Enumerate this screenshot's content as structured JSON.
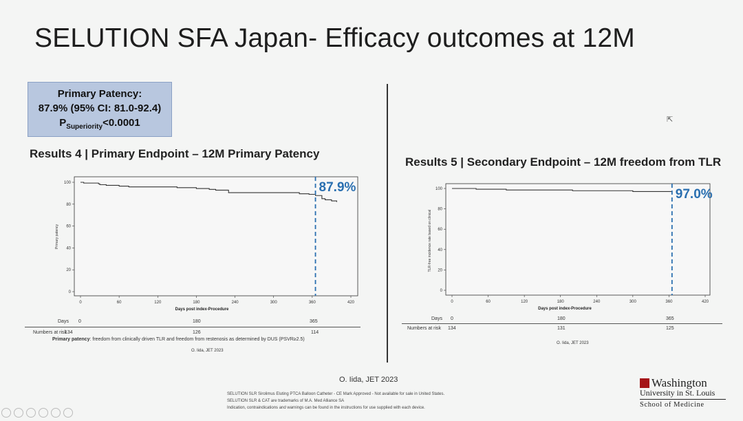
{
  "slide": {
    "title": "SELUTION SFA Japan- Efficacy outcomes at 12M",
    "stat_box": {
      "line1": "Primary Patency:",
      "line2": "87.9% (95% CI: 81.0-92.4)",
      "p_main": "P",
      "p_sub": "Superiority",
      "p_value": "<0.0001"
    },
    "citation": "O. Iida, JET 2023",
    "disclaimer_lines": [
      "SELUTION SLR Sirolimus Eluting PTCA Balloon Catheter - CE Mark Approved - Not available for sale in United States.",
      "SELUTION SLR & CAT are trademarks of M.A. Med Alliance SA",
      "Indication, contraindications and warnings can be found in the instructions for use supplied with each device."
    ],
    "logo": {
      "line1": "Washington",
      "line2": "University in St. Louis",
      "line3": "School of Medicine"
    }
  },
  "left": {
    "title": "Results 4 | Primary Endpoint – 12M Primary Patency",
    "risk_days_label": "Days",
    "risk_numbers_label": "Numbers at risk",
    "risk_days": [
      "0",
      "180",
      "365"
    ],
    "risk_numbers": [
      "134",
      "126",
      "114"
    ],
    "footnote_bold": "Primary patency",
    "footnote_text": ": freedom from clinically driven TLR and freedom from restenosis as determined by DUS (PSVR≥2.5)",
    "small_cite": "O. Iida, JET 2023"
  },
  "right": {
    "title": "Results 5 | Secondary Endpoint – 12M freedom from TLR",
    "risk_days_label": "Days",
    "risk_numbers_label": "Numbers at risk",
    "risk_days": [
      "0",
      "180",
      "365"
    ],
    "risk_numbers": [
      "134",
      "131",
      "125"
    ],
    "small_cite": "O. Iida, JET 2023"
  },
  "chart_data": [
    {
      "type": "line",
      "title": "Results 4 | Primary Endpoint – 12M Primary Patency",
      "xlabel": "Days post index-Procedure",
      "ylabel": "Primary patency",
      "xlim": [
        0,
        420
      ],
      "ylim": [
        0,
        100
      ],
      "xticks": [
        0,
        60,
        120,
        180,
        240,
        300,
        360,
        420
      ],
      "yticks": [
        0,
        20,
        40,
        60,
        80,
        100
      ],
      "annotation": "87.9%",
      "marker_x": 365,
      "color": "#333333",
      "marker_color": "#2a6fb0",
      "series": [
        {
          "x": [
            0,
            5,
            28,
            30,
            40,
            60,
            75,
            120,
            150,
            180,
            200,
            210,
            230,
            260,
            300,
            340,
            355,
            365,
            375,
            380,
            390,
            398
          ],
          "y": [
            100,
            99.3,
            98.6,
            97.8,
            97.2,
            96.5,
            95.8,
            95.8,
            95.1,
            94.3,
            93.5,
            92.8,
            90.5,
            90.5,
            90.5,
            89.5,
            89.0,
            87.9,
            85.0,
            84.0,
            83.0,
            82.0
          ]
        }
      ]
    },
    {
      "type": "line",
      "title": "Results 5 | Secondary Endpoint – 12M freedom from TLR",
      "xlabel": "Days post index-Procedure",
      "ylabel": "TLR-free incidence rate based on clinical",
      "xlim": [
        0,
        420
      ],
      "ylim": [
        0,
        100
      ],
      "xticks": [
        0,
        60,
        120,
        180,
        240,
        300,
        360,
        420
      ],
      "yticks": [
        0,
        20,
        40,
        60,
        80,
        100
      ],
      "annotation": "97.0%",
      "marker_x": 365,
      "color": "#333333",
      "marker_color": "#2a6fb0",
      "series": [
        {
          "x": [
            0,
            30,
            40,
            60,
            90,
            180,
            200,
            260,
            300,
            365
          ],
          "y": [
            100,
            100,
            99.3,
            99.3,
            98.5,
            98.5,
            97.8,
            97.8,
            97.0,
            97.0
          ]
        }
      ]
    }
  ]
}
